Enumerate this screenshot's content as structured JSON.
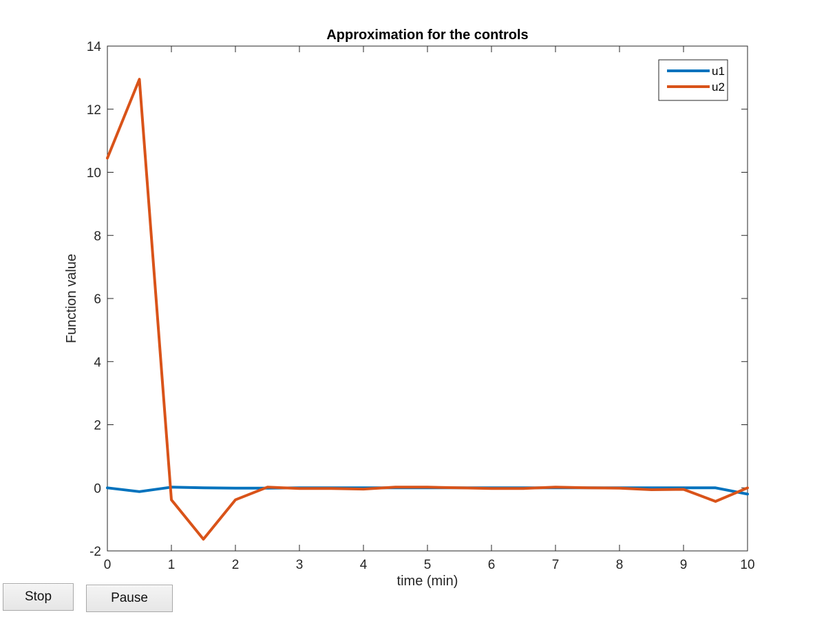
{
  "chart_data": {
    "type": "line",
    "title": "Approximation for the controls",
    "xlabel": "time (min)",
    "ylabel": "Function value",
    "xlim": [
      0,
      10
    ],
    "ylim": [
      -2,
      14
    ],
    "xticks": [
      0,
      1,
      2,
      3,
      4,
      5,
      6,
      7,
      8,
      9,
      10
    ],
    "yticks": [
      -2,
      0,
      2,
      4,
      6,
      8,
      10,
      12,
      14
    ],
    "grid": false,
    "legend_position": "top-right",
    "x": [
      0,
      0.5,
      1,
      1.5,
      2,
      2.5,
      3,
      3.5,
      4,
      4.5,
      5,
      5.5,
      6,
      6.5,
      7,
      7.5,
      8,
      8.5,
      9,
      9.5,
      10
    ],
    "series": [
      {
        "name": "u1",
        "color": "#0072BD",
        "values": [
          0.0,
          -0.12,
          0.02,
          0.0,
          -0.01,
          -0.01,
          0.0,
          0.0,
          0.0,
          0.0,
          0.0,
          0.0,
          0.0,
          0.0,
          0.0,
          0.0,
          0.0,
          0.0,
          0.0,
          0.0,
          -0.2
        ]
      },
      {
        "name": "u2",
        "color": "#D95319",
        "values": [
          10.45,
          12.95,
          -0.38,
          -1.63,
          -0.38,
          0.02,
          -0.02,
          -0.02,
          -0.04,
          0.02,
          0.02,
          0.0,
          -0.02,
          -0.02,
          0.02,
          0.0,
          -0.01,
          -0.06,
          -0.05,
          -0.43,
          0.0
        ]
      }
    ]
  },
  "controls": {
    "stop_label": "Stop",
    "pause_label": "Pause"
  }
}
